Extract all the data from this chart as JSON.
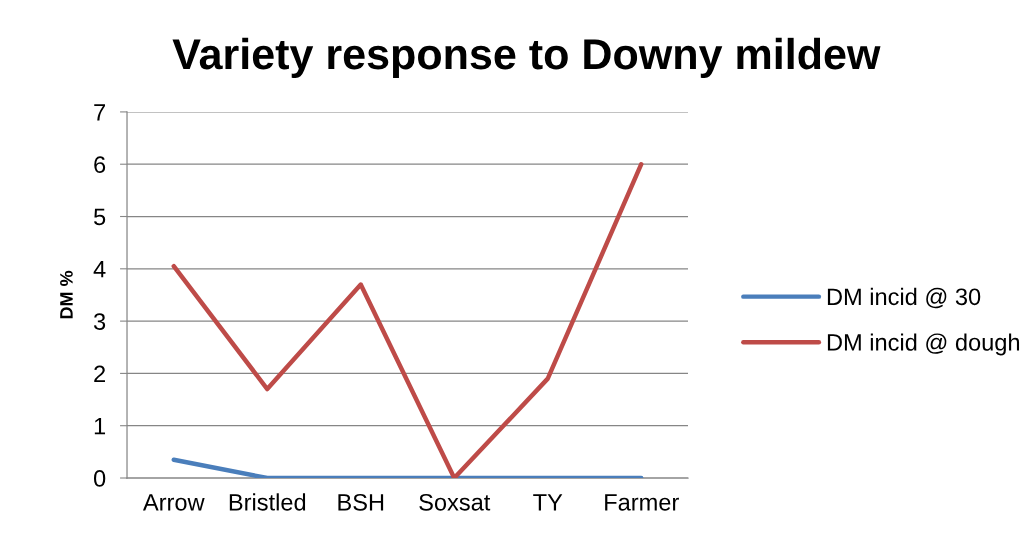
{
  "chart_data": {
    "type": "line",
    "title": "Variety response to Downy mildew",
    "ylabel": "DM %",
    "categories": [
      "Arrow",
      "Bristled",
      "BSH",
      "Soxsat",
      "TY",
      "Farmer"
    ],
    "series": [
      {
        "name": "DM incid @ 30",
        "color": "#4a7ebb",
        "values": [
          0.35,
          0,
          0,
          0,
          0,
          0
        ]
      },
      {
        "name": "DM incid @ dough",
        "color": "#be4b48",
        "values": [
          4.05,
          1.7,
          3.7,
          0,
          1.9,
          6.0
        ]
      }
    ],
    "ylim": [
      0,
      7
    ],
    "yticks": [
      0,
      1,
      2,
      3,
      4,
      5,
      6,
      7
    ],
    "grid": "y",
    "legend": "right",
    "marker": "none",
    "line_style": "solid"
  }
}
